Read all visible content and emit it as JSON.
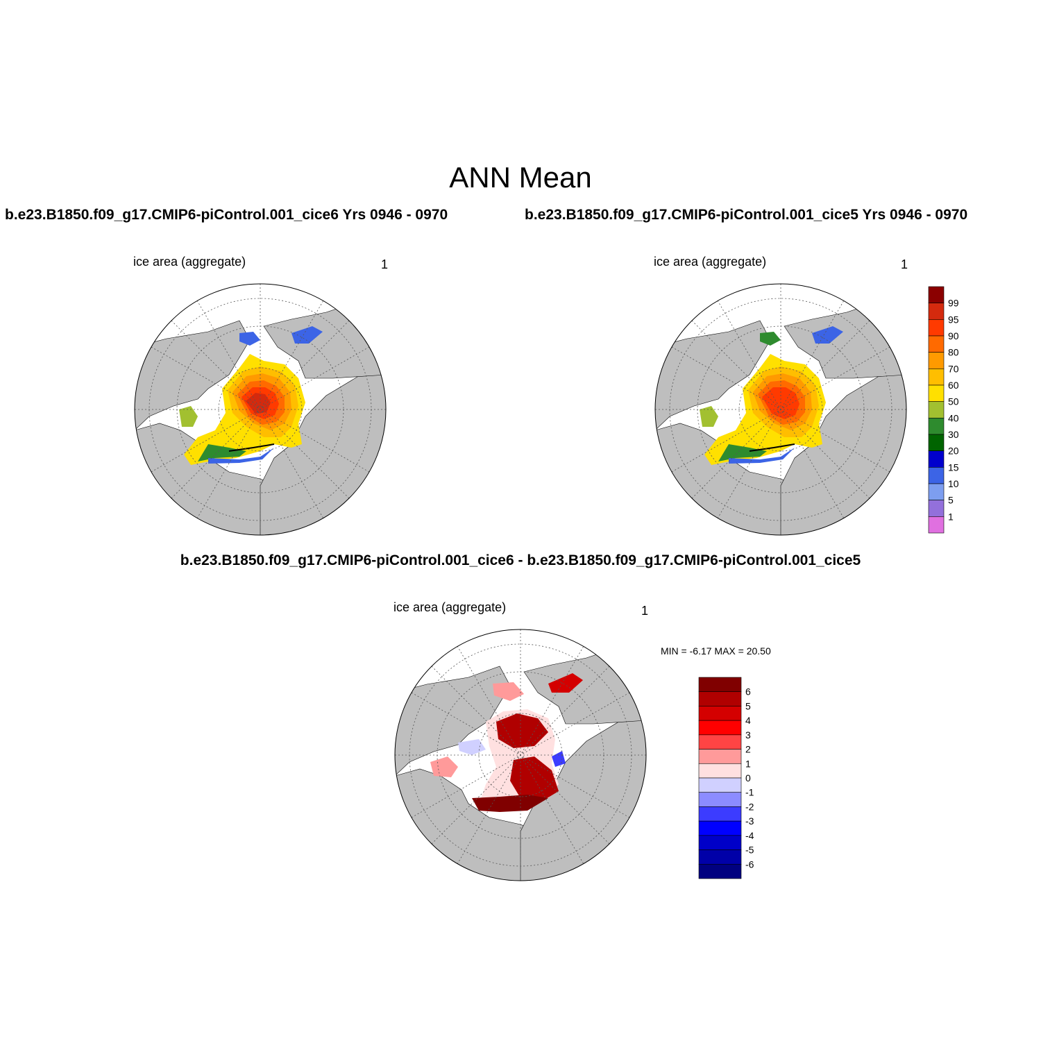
{
  "figure": {
    "title": "ANN Mean",
    "case_title_left": "b.e23.B1850.f09_g17.CMIP6-piControl.001_cice6  Yrs 0946 - 0970",
    "case_title_right": "b.e23.B1850.f09_g17.CMIP6-piControl.001_cice5  Yrs 0946 - 0970",
    "diff_title": "b.e23.B1850.f09_g17.CMIP6-piControl.001_cice6 - b.e23.B1850.f09_g17.CMIP6-piControl.001_cice5"
  },
  "panels": {
    "left": {
      "variable": "ice area  (aggregate)",
      "units": "1"
    },
    "right": {
      "variable": "ice area  (aggregate)",
      "units": "1"
    },
    "diff": {
      "variable": "ice area  (aggregate)",
      "units": "1",
      "stats": "MIN =  -6.17 MAX =  20.50"
    }
  },
  "colorbar_main": {
    "labels": [
      "99",
      "95",
      "90",
      "80",
      "70",
      "60",
      "50",
      "40",
      "30",
      "20",
      "15",
      "10",
      "5",
      "1"
    ],
    "colors": [
      "#8b0000",
      "#d42a0e",
      "#ff3a00",
      "#ff6a00",
      "#ff9a00",
      "#ffbe00",
      "#ffe000",
      "#a2c030",
      "#2e8b2e",
      "#006400",
      "#0000cd",
      "#3c64e6",
      "#7d9ef0",
      "#9370db",
      "#e070e0"
    ]
  },
  "colorbar_diff": {
    "labels": [
      "6",
      "5",
      "4",
      "3",
      "2",
      "1",
      "0",
      "-1",
      "-2",
      "-3",
      "-4",
      "-5",
      "-6"
    ],
    "colors": [
      "#800000",
      "#b00000",
      "#d40000",
      "#ff0000",
      "#ff4444",
      "#ff9a9a",
      "#ffe0e0",
      "#d0d0ff",
      "#8c8cff",
      "#3c3cff",
      "#0000ff",
      "#0000c8",
      "#0000a8",
      "#000080"
    ]
  },
  "map_colors": {
    "land": "#bebebe",
    "ocean": "#ffffff",
    "grid": "#555555"
  }
}
